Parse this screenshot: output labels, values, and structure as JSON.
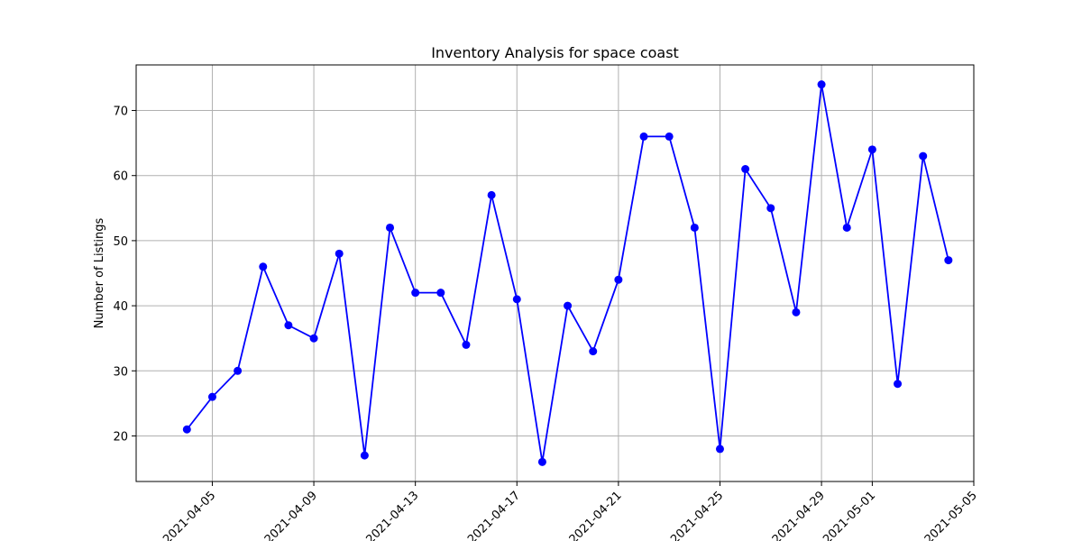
{
  "chart_data": {
    "type": "line",
    "title": "Inventory Analysis for space coast",
    "xlabel": "",
    "ylabel": "Number of Listings",
    "grid": true,
    "series_color": "#0000ff",
    "x_ticks": [
      "2021-04-05",
      "2021-04-09",
      "2021-04-13",
      "2021-04-17",
      "2021-04-21",
      "2021-04-25",
      "2021-04-29",
      "2021-05-01",
      "2021-05-05"
    ],
    "y_ticks": [
      20,
      30,
      40,
      50,
      60,
      70
    ],
    "xlim": [
      "2021-04-02",
      "2021-05-05"
    ],
    "ylim": [
      13,
      77
    ],
    "x": [
      "2021-04-04",
      "2021-04-05",
      "2021-04-06",
      "2021-04-07",
      "2021-04-08",
      "2021-04-09",
      "2021-04-10",
      "2021-04-11",
      "2021-04-12",
      "2021-04-13",
      "2021-04-14",
      "2021-04-15",
      "2021-04-16",
      "2021-04-17",
      "2021-04-18",
      "2021-04-19",
      "2021-04-20",
      "2021-04-21",
      "2021-04-22",
      "2021-04-23",
      "2021-04-24",
      "2021-04-25",
      "2021-04-26",
      "2021-04-27",
      "2021-04-28",
      "2021-04-29",
      "2021-04-30",
      "2021-05-01",
      "2021-05-02",
      "2021-05-03",
      "2021-05-04"
    ],
    "series": [
      {
        "values": [
          21,
          26,
          30,
          46,
          37,
          35,
          48,
          17,
          52,
          42,
          42,
          34,
          57,
          41,
          16,
          40,
          33,
          44,
          66,
          66,
          52,
          18,
          61,
          55,
          39,
          74,
          52,
          64,
          28,
          63,
          47
        ]
      }
    ]
  }
}
